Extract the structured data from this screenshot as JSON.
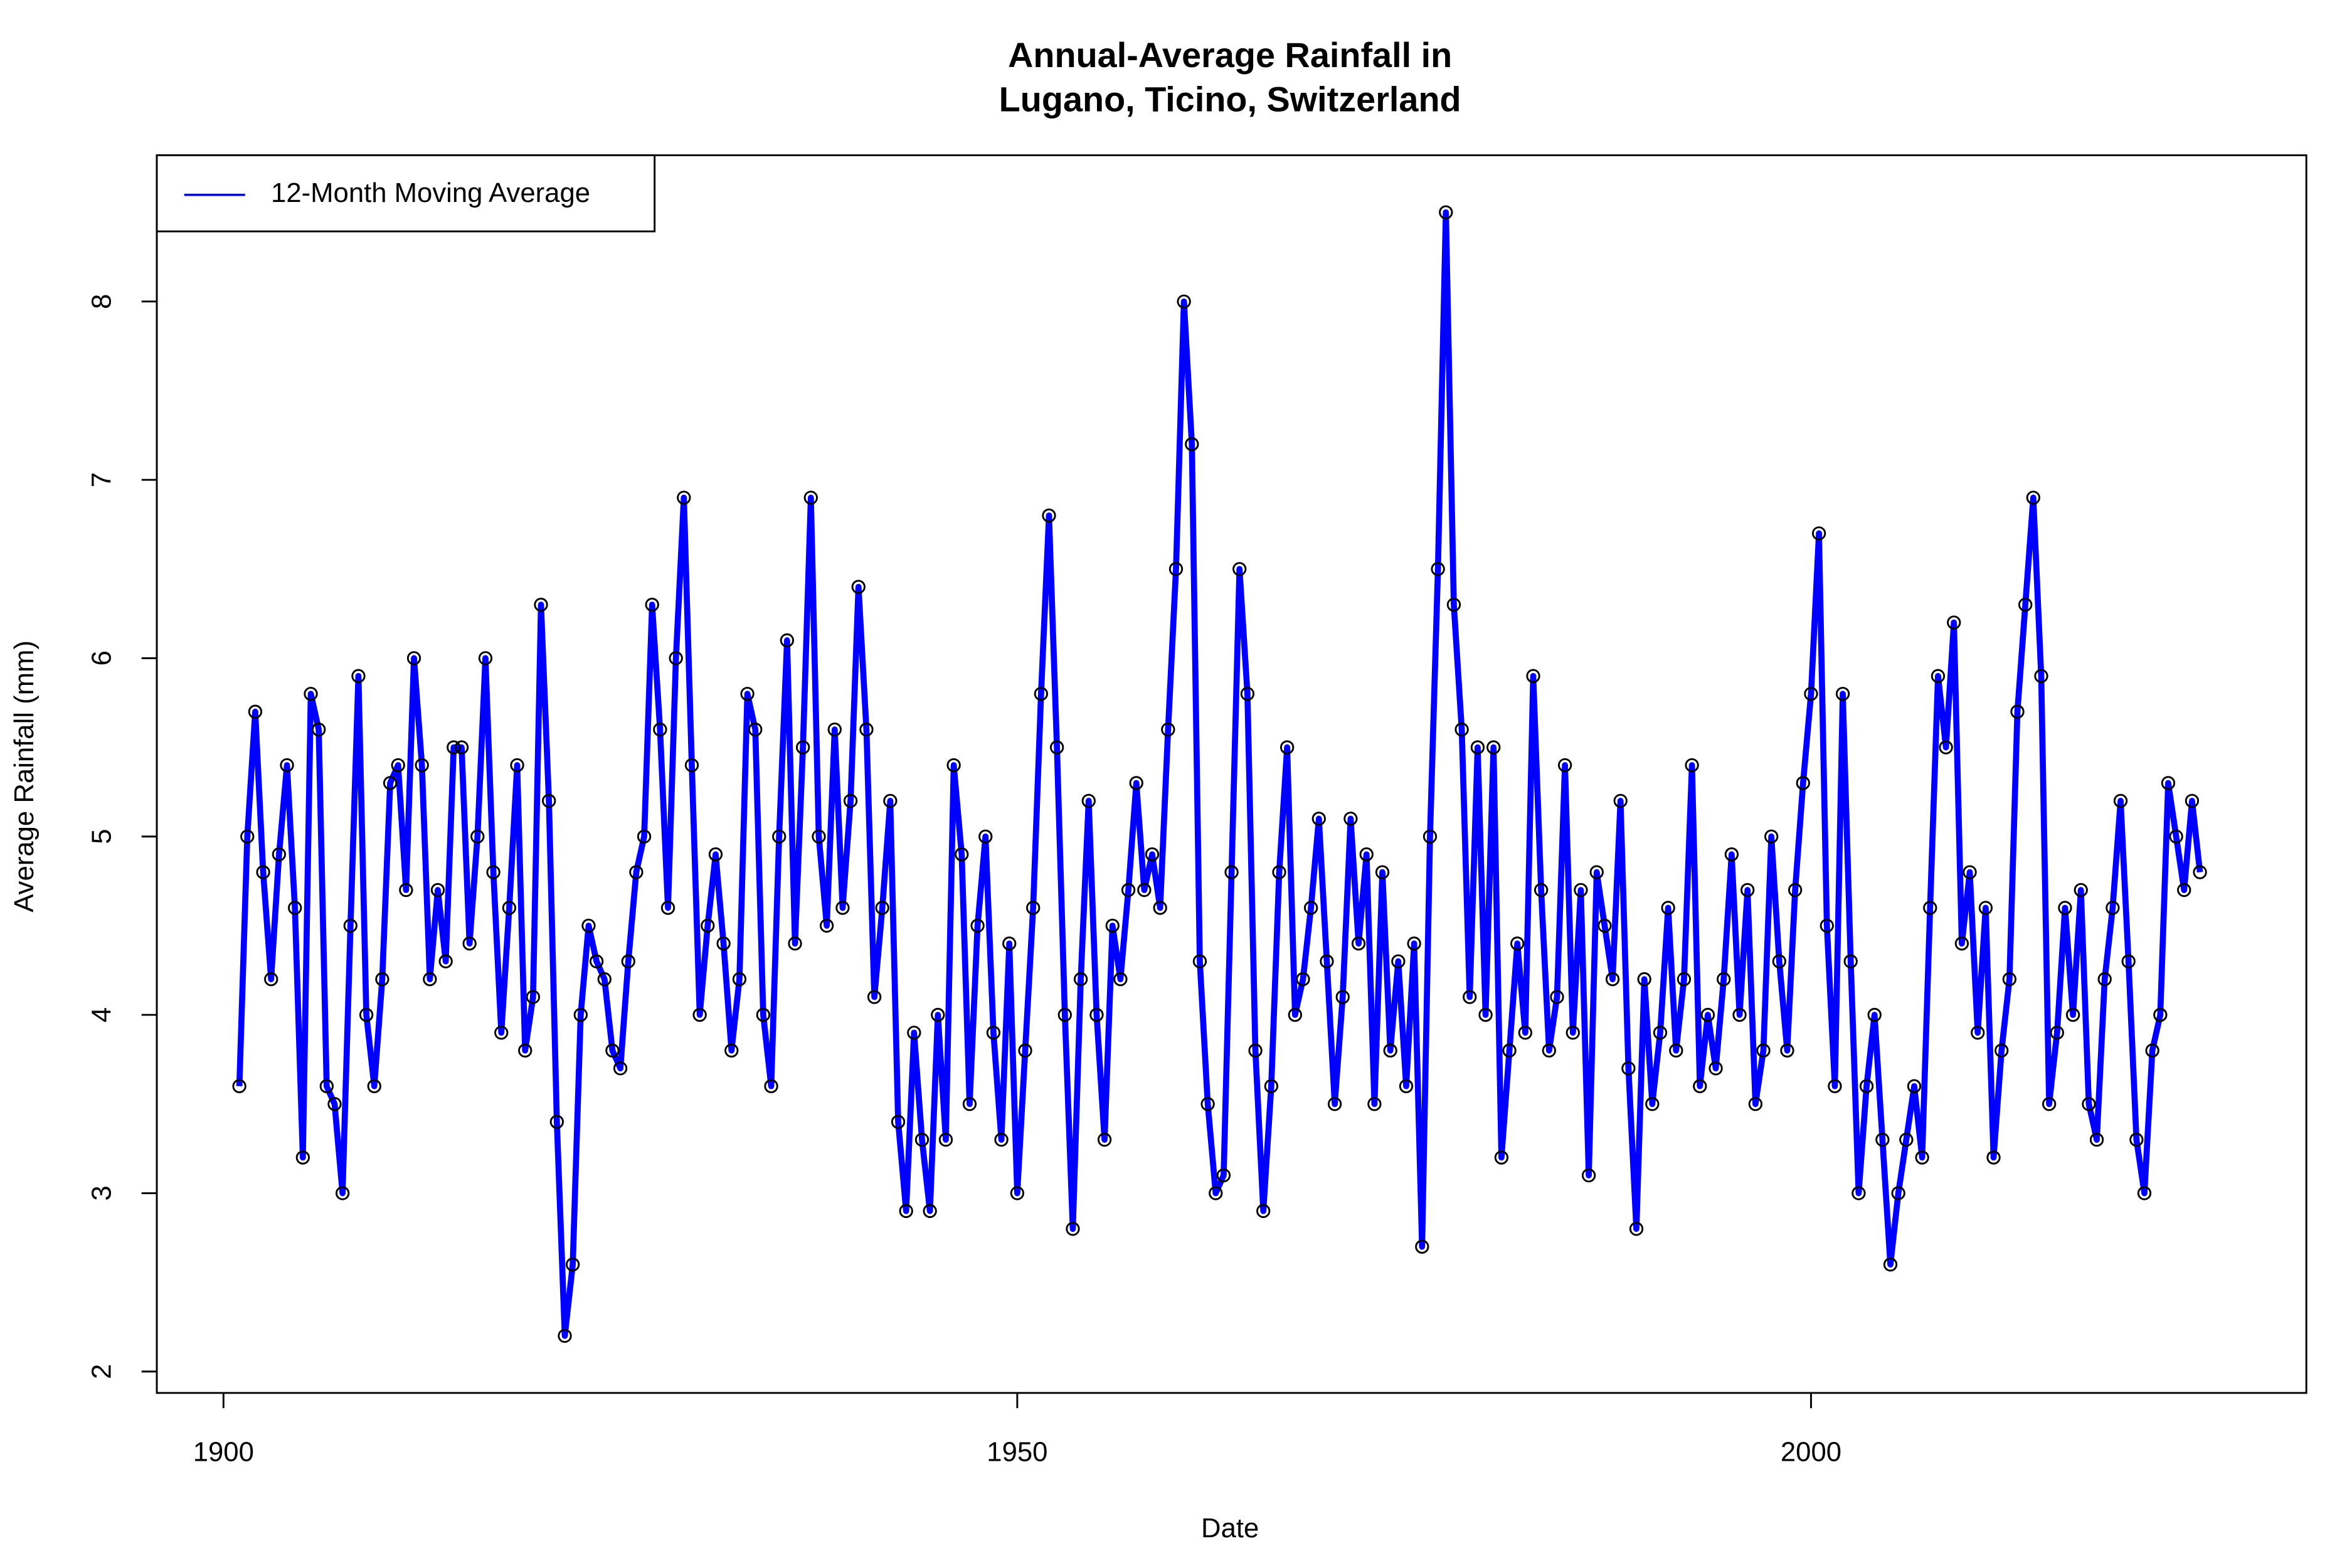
{
  "chart_data": {
    "type": "line",
    "title": [
      "Annual-Average Rainfall in",
      "Lugano, Ticino, Switzerland"
    ],
    "x_label": "Date",
    "y_label": "Average Rainfall (mm)",
    "xlim": [
      1895.8,
      2031.2
    ],
    "ylim": [
      1.88,
      8.82
    ],
    "xticks": [
      1900,
      1950,
      2000
    ],
    "yticks": [
      2,
      3,
      4,
      5,
      6,
      7,
      8
    ],
    "legend": "top-left",
    "markers": true,
    "x": [
      1901,
      1901.5,
      1902,
      1902.5,
      1903,
      1903.5,
      1904,
      1904.5,
      1905,
      1905.5,
      1906,
      1906.5,
      1907,
      1907.5,
      1908,
      1908.5,
      1909,
      1909.5,
      1910,
      1910.5,
      1911,
      1911.5,
      1912,
      1912.5,
      1913,
      1913.5,
      1914,
      1914.5,
      1915,
      1915.5,
      1916,
      1916.5,
      1917,
      1917.5,
      1918,
      1918.5,
      1919,
      1919.5,
      1920,
      1920.5,
      1921,
      1921.5,
      1922,
      1922.5,
      1923,
      1923.5,
      1924,
      1924.5,
      1925,
      1925.5,
      1926,
      1926.5,
      1927,
      1927.5,
      1928,
      1928.5,
      1929,
      1929.5,
      1930,
      1930.5,
      1931,
      1931.5,
      1932,
      1932.5,
      1933,
      1933.5,
      1934,
      1934.5,
      1935,
      1935.5,
      1936,
      1936.5,
      1937,
      1937.5,
      1938,
      1938.5,
      1939,
      1939.5,
      1940,
      1940.5,
      1941,
      1941.5,
      1942,
      1942.5,
      1943,
      1943.5,
      1944,
      1944.5,
      1945,
      1945.5,
      1946,
      1946.5,
      1947,
      1947.5,
      1948,
      1948.5,
      1949,
      1949.5,
      1950,
      1950.5,
      1951,
      1951.5,
      1952,
      1952.5,
      1953,
      1953.5,
      1954,
      1954.5,
      1955,
      1955.5,
      1956,
      1956.5,
      1957,
      1957.5,
      1958,
      1958.5,
      1959,
      1959.5,
      1960,
      1960.5,
      1961,
      1961.5,
      1962,
      1962.5,
      1963,
      1963.5,
      1964,
      1964.5,
      1965,
      1965.5,
      1966,
      1966.5,
      1967,
      1967.5,
      1968,
      1968.5,
      1969,
      1969.5,
      1970,
      1970.5,
      1971,
      1971.5,
      1972,
      1972.5,
      1973,
      1973.5,
      1974,
      1974.5,
      1975,
      1975.5,
      1976,
      1976.5,
      1977,
      1977.5,
      1978,
      1978.5,
      1979,
      1979.5,
      1980,
      1980.5,
      1981,
      1981.5,
      1982,
      1982.5,
      1983,
      1983.5,
      1984,
      1984.5,
      1985,
      1985.5,
      1986,
      1986.5,
      1987,
      1987.5,
      1988,
      1988.5,
      1989,
      1989.5,
      1990,
      1990.5,
      1991,
      1991.5,
      1992,
      1992.5,
      1993,
      1993.5,
      1994,
      1994.5,
      1995,
      1995.5,
      1996,
      1996.5,
      1997,
      1997.5,
      1998,
      1998.5,
      1999,
      1999.5,
      2000,
      2000.5,
      2001,
      2001.5,
      2002,
      2002.5,
      2003,
      2003.5,
      2004,
      2004.5,
      2005,
      2005.5,
      2006,
      2006.5,
      2007,
      2007.5,
      2008,
      2008.5,
      2009,
      2009.5,
      2010,
      2010.5,
      2011,
      2011.5,
      2012,
      2012.5,
      2013,
      2013.5,
      2014,
      2014.5,
      2015,
      2015.5,
      2016,
      2016.5,
      2017,
      2017.5,
      2018,
      2018.5,
      2019,
      2019.5,
      2020,
      2020.5,
      2021,
      2021.5,
      2022,
      2022.5,
      2023,
      2023.5,
      2024,
      2024.5
    ],
    "series": [
      {
        "name": "12-Month Moving Average",
        "color": "#0000ff",
        "values": [
          3.6,
          5.0,
          5.7,
          4.8,
          4.2,
          4.9,
          5.4,
          4.6,
          3.2,
          5.8,
          5.6,
          3.6,
          3.5,
          3.0,
          4.5,
          5.9,
          4.0,
          3.6,
          4.2,
          5.3,
          5.4,
          4.7,
          6.0,
          5.4,
          4.2,
          4.7,
          4.3,
          5.5,
          5.5,
          4.4,
          5.0,
          6.0,
          4.8,
          3.9,
          4.6,
          5.4,
          3.8,
          4.1,
          6.3,
          5.2,
          3.4,
          2.2,
          2.6,
          4.0,
          4.5,
          4.3,
          4.2,
          3.8,
          3.7,
          4.3,
          4.8,
          5.0,
          6.3,
          5.6,
          4.6,
          6.0,
          6.9,
          5.4,
          4.0,
          4.5,
          4.9,
          4.4,
          3.8,
          4.2,
          5.8,
          5.6,
          4.0,
          3.6,
          5.0,
          6.1,
          4.4,
          5.5,
          6.9,
          5.0,
          4.5,
          5.6,
          4.6,
          5.2,
          6.4,
          5.6,
          4.1,
          4.6,
          5.2,
          3.4,
          2.9,
          3.9,
          3.3,
          2.9,
          4.0,
          3.3,
          5.4,
          4.9,
          3.5,
          4.5,
          5.0,
          3.9,
          3.3,
          4.4,
          3.0,
          3.8,
          4.6,
          5.8,
          6.8,
          5.5,
          4.0,
          2.8,
          4.2,
          5.2,
          4.0,
          3.3,
          4.5,
          4.2,
          4.7,
          5.3,
          4.7,
          4.9,
          4.6,
          5.6,
          6.5,
          8.0,
          7.2,
          4.3,
          3.5,
          3.0,
          3.1,
          4.8,
          6.5,
          5.8,
          3.8,
          2.9,
          3.6,
          4.8,
          5.5,
          4.0,
          4.2,
          4.6,
          5.1,
          4.3,
          3.5,
          4.1,
          5.1,
          4.4,
          4.9,
          3.5,
          4.8,
          3.8,
          4.3,
          3.6,
          4.4,
          2.7,
          5.0,
          6.5,
          8.5,
          6.3,
          5.6,
          4.1,
          5.5,
          4.0,
          5.5,
          3.2,
          3.8,
          4.4,
          3.9,
          5.9,
          4.7,
          3.8,
          4.1,
          5.4,
          3.9,
          4.7,
          3.1,
          4.8,
          4.5,
          4.2,
          5.2,
          3.7,
          2.8,
          4.2,
          3.5,
          3.9,
          4.6,
          3.8,
          4.2,
          5.4,
          3.6,
          4.0,
          3.7,
          4.2,
          4.9,
          4.0,
          4.7,
          3.5,
          3.8,
          5.0,
          4.3,
          3.8,
          4.7,
          5.3,
          5.8,
          6.7,
          4.5,
          3.6,
          5.8,
          4.3,
          3.0,
          3.6,
          4.0,
          3.3,
          2.6,
          3.0,
          3.3,
          3.6,
          3.2,
          4.6,
          5.9,
          5.5,
          6.2,
          4.4,
          4.8,
          3.9,
          4.6,
          3.2,
          3.8,
          4.2,
          5.7,
          6.3,
          6.9,
          5.9,
          3.5,
          3.9,
          4.6,
          4.0,
          4.7,
          3.5,
          3.3,
          4.2,
          4.6,
          5.2,
          4.3,
          3.3,
          3.0,
          3.8,
          4.0,
          5.3,
          5.0,
          4.7,
          5.2,
          4.8
        ]
      }
    ]
  }
}
